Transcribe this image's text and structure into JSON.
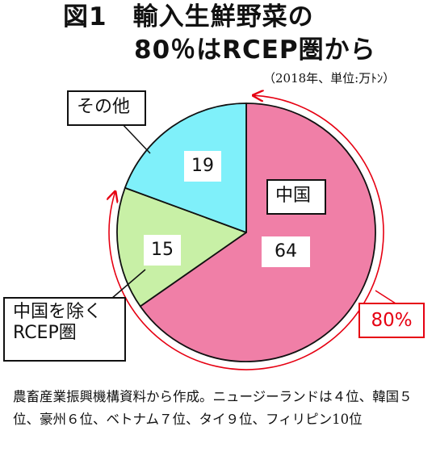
{
  "title": {
    "line1": "図1　輸入生鮮野菜の",
    "line2": "80％はRCEP圏から",
    "unit_note": "（2018年、単位:万ﾄﾝ）"
  },
  "chart_data": {
    "type": "pie",
    "slices": [
      {
        "label": "中国",
        "value": 64,
        "color": "#f07fa7"
      },
      {
        "label": "中国を除く\nRCEP圏",
        "value": 15,
        "color": "#c8f0a6"
      },
      {
        "label": "その他",
        "value": 19,
        "color": "#7ff0fa"
      }
    ],
    "annotation": {
      "label": "80%",
      "color": "#e60012"
    }
  },
  "labels": {
    "china": "中国",
    "china_value": "64",
    "rcep_line1": "中国を除く",
    "rcep_line2": "RCEP圏",
    "rcep_value": "15",
    "other": "その他",
    "other_value": "19",
    "share": "80%"
  },
  "note": "農畜産業振興機構資料から作成。ニュージーランドは４位、韓国５位、豪州６位、ベトナム７位、タイ９位、フィリピン10位"
}
